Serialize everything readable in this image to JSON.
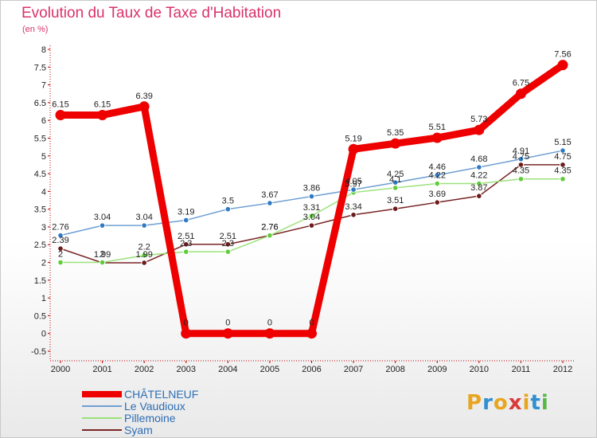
{
  "header": {
    "title": "Evolution du Taux de Taxe d'Habitation",
    "unit": "(en %)"
  },
  "logo": {
    "text": "Proxiti",
    "colors": [
      "#e8a520",
      "#2f8fd0",
      "#e8a520",
      "#d93a3a",
      "#e8a520",
      "#2f8fd0",
      "#58b847"
    ]
  },
  "chart_data": {
    "type": "line",
    "title": "Evolution du Taux de Taxe d'Habitation",
    "ylabel": "(en %)",
    "xlabel": "",
    "categories": [
      "2000",
      "2001",
      "2002",
      "2003",
      "2004",
      "2005",
      "2006",
      "2007",
      "2008",
      "2009",
      "2010",
      "2011",
      "2012"
    ],
    "y_ticks": [
      "-0.5",
      "0",
      "0.5",
      "1",
      "1.5",
      "2",
      "2.5",
      "3",
      "3.5",
      "4",
      "4.5",
      "5",
      "5.5",
      "6",
      "6.5",
      "7",
      "7.5",
      "8"
    ],
    "ylim": [
      -0.5,
      8
    ],
    "grid": false,
    "legend_position": "bottom-left",
    "series": [
      {
        "name": "CHÂTELNEUF",
        "color": "#ee0000",
        "emphasis": true,
        "values": [
          6.15,
          6.15,
          6.39,
          0,
          0,
          0,
          0,
          5.19,
          5.35,
          5.51,
          5.73,
          6.75,
          7.56
        ],
        "labels": [
          "6.15",
          "6.15",
          "6.39",
          "0",
          "0",
          "0",
          "0",
          "5.19",
          "5.35",
          "5.51",
          "5.73",
          "6.75",
          "7.56"
        ]
      },
      {
        "name": "Le Vaudioux",
        "color": "#6f9fd3",
        "marker": "#2e7bc4",
        "values": [
          2.76,
          3.04,
          3.04,
          3.19,
          3.5,
          3.67,
          3.86,
          4.05,
          4.25,
          4.46,
          4.68,
          4.91,
          5.15
        ],
        "labels": [
          "2.76",
          "3.04",
          "3.04",
          "3.19",
          "3.5",
          "3.67",
          "3.86",
          "4.05",
          "4.25",
          "4.46",
          "4.68",
          "4.91",
          "5.15"
        ]
      },
      {
        "name": "Pillemoine",
        "color": "#9be27a",
        "marker": "#5fcc3a",
        "values": [
          2,
          2,
          2.2,
          2.3,
          2.3,
          2.76,
          3.31,
          3.97,
          4.1,
          4.22,
          4.22,
          4.35,
          4.35
        ],
        "labels": [
          "2",
          "2",
          "2.2",
          "2.3",
          "2.3",
          "2.76",
          "3.31",
          "3.97",
          "4.1",
          "4.22",
          "4.22",
          "4.35",
          "4.35"
        ]
      },
      {
        "name": "Syam",
        "color": "#7a2525",
        "marker": "#6b1b1b",
        "values": [
          2.39,
          1.99,
          1.99,
          2.51,
          2.51,
          2.76,
          3.04,
          3.34,
          3.51,
          3.69,
          3.87,
          4.75,
          4.75
        ],
        "labels": [
          "2.39",
          "1.99",
          "1.99",
          "2.51",
          "2.51",
          "2.76",
          "3.04",
          "3.34",
          "3.51",
          "3.69",
          "3.87",
          "4.75",
          "4.75"
        ]
      }
    ]
  }
}
